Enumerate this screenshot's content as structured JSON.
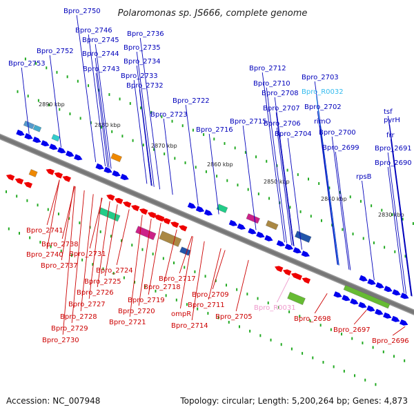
{
  "title": "Polaromonas sp. JS666, complete genome",
  "footer": {
    "accession": "Accession: NC_007948",
    "topology": "Topology: circular; Length: 5,200,264 bp; Genes: 4,873"
  },
  "colors": {
    "forward_label": "#0000bb",
    "reverse_label": "#cc0000",
    "rna_forward": "#33bbee",
    "rna_reverse": "#ee99cc",
    "backbone": "#777777",
    "tick": "#22aa22"
  },
  "scale_labels": [
    "2890 kbp",
    "2880 kbp",
    "2870 kbp",
    "2860 kbp",
    "2850 kbp",
    "2840 kbp",
    "2830 kbp"
  ],
  "forward_genes": [
    "Bpro_2750",
    "Bpro_2746",
    "Bpro_2745",
    "Bpro_2752",
    "Bpro_2744",
    "Bpro_2753",
    "Bpro_2743",
    "Bpro_2736",
    "Bpro_2735",
    "Bpro_2734",
    "Bpro_2733",
    "Bpro_2732",
    "Bpro_2722",
    "Bpro_2723",
    "Bpro_2712",
    "Bpro_2710",
    "Bpro_2715",
    "Bpro_2716",
    "Bpro_2708",
    "Bpro_2707",
    "Bpro_2706",
    "Bpro_2704",
    "Bpro_2703",
    "Bpro_R0032",
    "Bpro_2702",
    "rimO",
    "Bpro_2700",
    "Bpro_2699",
    "tsf",
    "pyrH",
    "frr",
    "Bpro_2691",
    "Bpro_2690",
    "rpsB"
  ],
  "reverse_genes": [
    "Bpro_2741",
    "Bpro_2738",
    "Bpro_2740",
    "Bpro_2731",
    "Bpro_2737",
    "Bpro_2724",
    "Bpro_2725",
    "Bpro_2726",
    "Bpro_2727",
    "Bpro_2728",
    "Bpro_2729",
    "Bpro_2730",
    "Bpro_2717",
    "Bpro_2718",
    "Bpro_2719",
    "Bpro_2720",
    "Bpro_2721",
    "Bpro_2714",
    "ompR",
    "Bpro_2711",
    "Bpro_2709",
    "Bpro_2705",
    "Bpro_R0031",
    "Bpro_2698",
    "Bpro_2697",
    "Bpro_2696"
  ]
}
